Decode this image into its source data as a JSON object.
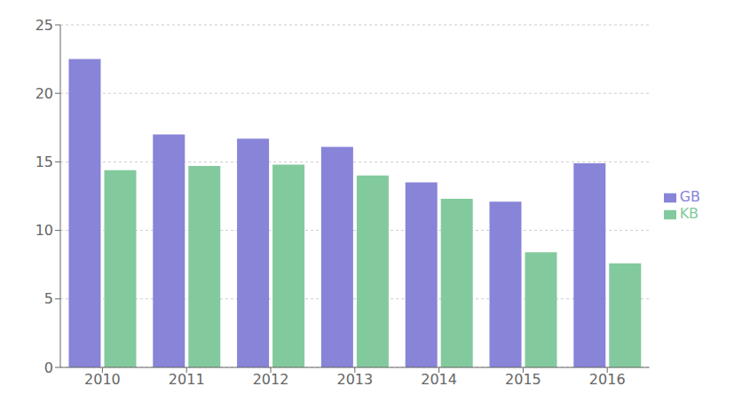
{
  "chart_data": {
    "type": "bar",
    "categories": [
      "2010",
      "2011",
      "2012",
      "2013",
      "2014",
      "2015",
      "2016"
    ],
    "series": [
      {
        "name": "GB",
        "color": "#8884d8",
        "values": [
          22.5,
          17.0,
          16.7,
          16.1,
          13.5,
          12.1,
          14.9
        ]
      },
      {
        "name": "KB",
        "color": "#82ca9d",
        "values": [
          14.4,
          14.7,
          14.8,
          14.0,
          12.3,
          8.4,
          7.6
        ]
      }
    ],
    "ylim": [
      0,
      25
    ],
    "yticks": [
      0,
      5,
      10,
      15,
      20,
      25
    ],
    "grid": true,
    "legend": "right"
  }
}
